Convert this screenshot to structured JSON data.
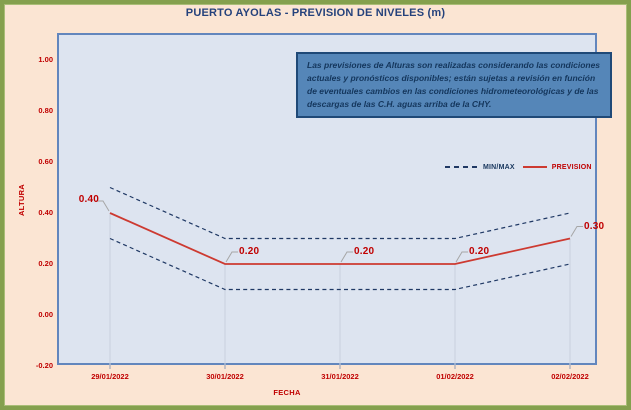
{
  "title": "PUERTO AYOLAS - PREVISION DE NIVELES (m)",
  "note_box": {
    "text": "Las previsiones de Alturas son realizadas considerando las condiciones actuales y pronósticos disponibles;  están sujetas a revisión en función de eventuales cambios en las condiciones hidrometeorológicas y de las descargas de las C.H. aguas arriba de la CHY."
  },
  "colors": {
    "page_bg": "#fbe5d3",
    "frame_border": "#84a04e",
    "plot_bg": "#dde4f0",
    "plot_border": "#6286bd",
    "drop_line": "#c9d1de",
    "axis_tick": "#8d9cb5",
    "title_text": "#25427c",
    "axis_text": "#c00000",
    "data_label_text": "#c00000",
    "prevision_line": "#cd3a31",
    "minmax_line": "#1f3864",
    "leader_line": "#a6a6a6",
    "note_bg": "#5586b8",
    "note_border": "#1f4977",
    "note_text": "#14365c",
    "legend_minmax_text": "#17365d",
    "legend_prevision_text": "#c00000"
  },
  "chart_data": {
    "type": "line",
    "title": "PUERTO AYOLAS - PREVISION DE NIVELES (m)",
    "xlabel": "FECHA",
    "ylabel": "ALTURA",
    "categories": [
      "29/01/2022",
      "30/01/2022",
      "31/01/2022",
      "01/02/2022",
      "02/02/2022"
    ],
    "series": [
      {
        "name": "PREVISION",
        "style": "solid",
        "color": "#cd3a31",
        "values": [
          0.4,
          0.2,
          0.2,
          0.2,
          0.3
        ]
      },
      {
        "name": "MAX",
        "style": "dashed",
        "color": "#1f3864",
        "values": [
          0.5,
          0.3,
          0.3,
          0.3,
          0.4
        ]
      },
      {
        "name": "MIN",
        "style": "dashed",
        "color": "#1f3864",
        "values": [
          0.3,
          0.1,
          0.1,
          0.1,
          0.2
        ]
      }
    ],
    "data_labels": [
      "0.40",
      "0.20",
      "0.20",
      "0.20",
      "0.30"
    ],
    "y_ticks": [
      1.0,
      0.8,
      0.6,
      0.4,
      0.2,
      0.0,
      -0.2
    ],
    "y_tick_labels": [
      "1.00",
      "0.80",
      "0.60",
      "0.40",
      "0.20",
      "0.00",
      "-0.20"
    ],
    "ylim": [
      -0.2,
      1.1
    ],
    "grid": "drop-lines-vertical",
    "legend_position": "inside-top-right",
    "legend": [
      {
        "label": "MIN/MAX",
        "style": "dashed"
      },
      {
        "label": "PREVISION",
        "style": "solid"
      }
    ]
  }
}
